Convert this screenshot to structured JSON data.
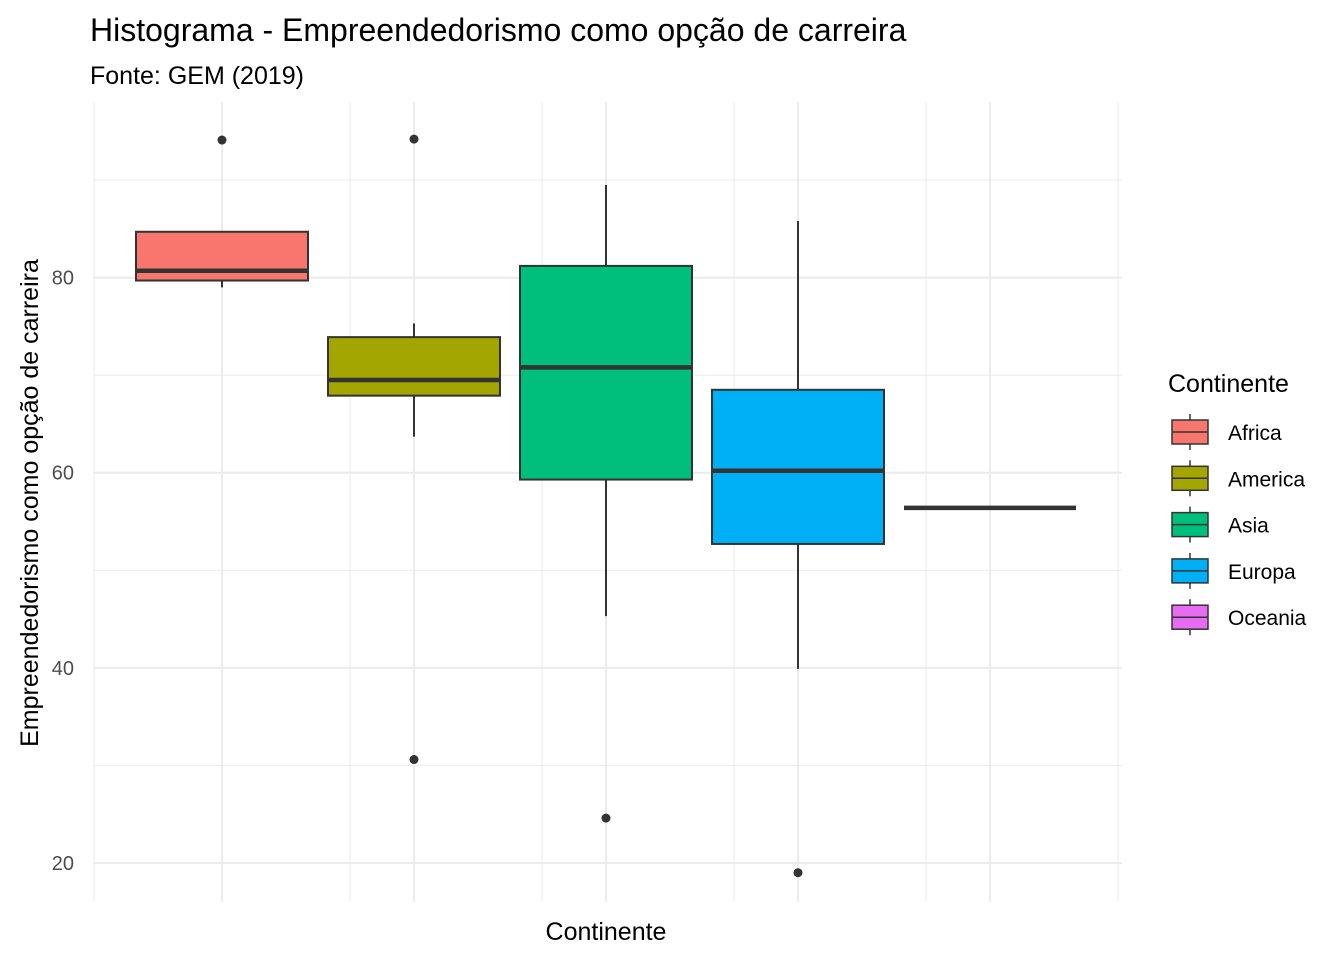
{
  "chart_data": {
    "type": "boxplot",
    "title": "Histograma - Empreendedorismo como opção de carreira",
    "subtitle": "Fonte: GEM (2019)",
    "xlabel": "Continente",
    "ylabel": "Empreendedorismo como opção de carreira",
    "ylim": [
      16,
      98
    ],
    "yticks": [
      20,
      40,
      60,
      80
    ],
    "grid": true,
    "legend": {
      "title": "Continente",
      "position": "right",
      "entries": [
        "Africa",
        "America",
        "Asia",
        "Europa",
        "Oceania"
      ]
    },
    "series": [
      {
        "name": "Africa",
        "color": "#F8766D",
        "whisker_low": 79.0,
        "q1": 79.7,
        "median": 80.7,
        "q3": 84.7,
        "whisker_high": 84.7,
        "outliers": [
          94.1
        ]
      },
      {
        "name": "America",
        "color": "#A3A500",
        "whisker_low": 63.7,
        "q1": 67.9,
        "median": 69.5,
        "q3": 73.9,
        "whisker_high": 75.3,
        "outliers": [
          94.2,
          30.6
        ]
      },
      {
        "name": "Asia",
        "color": "#00BF7D",
        "whisker_low": 45.3,
        "q1": 59.3,
        "median": 70.8,
        "q3": 81.2,
        "whisker_high": 89.5,
        "outliers": [
          24.6
        ]
      },
      {
        "name": "Europa",
        "color": "#00B0F6",
        "whisker_low": 39.9,
        "q1": 52.7,
        "median": 60.2,
        "q3": 68.5,
        "whisker_high": 85.8,
        "outliers": [
          19.0
        ]
      },
      {
        "name": "Oceania",
        "color": "#E76BF3",
        "whisker_low": 56.4,
        "q1": 56.4,
        "median": 56.4,
        "q3": 56.4,
        "whisker_high": 56.4,
        "outliers": []
      }
    ]
  }
}
